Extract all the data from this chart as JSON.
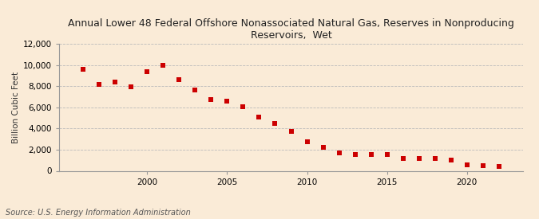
{
  "title": "Annual Lower 48 Federal Offshore Nonassociated Natural Gas, Reserves in Nonproducing\nReservoirs,  Wet",
  "ylabel": "Billion Cubic Feet",
  "source": "Source: U.S. Energy Information Administration",
  "background_color": "#faebd7",
  "plot_bg_color": "#faebd7",
  "marker_color": "#cc0000",
  "years": [
    1996,
    1997,
    1998,
    1999,
    2000,
    2001,
    2002,
    2003,
    2004,
    2005,
    2006,
    2007,
    2008,
    2009,
    2010,
    2011,
    2012,
    2013,
    2014,
    2015,
    2016,
    2017,
    2018,
    2019,
    2020,
    2021,
    2022
  ],
  "values": [
    9600,
    8200,
    8400,
    7950,
    9400,
    9950,
    8650,
    7600,
    6700,
    6550,
    6050,
    5050,
    4500,
    3750,
    2750,
    2250,
    1700,
    1550,
    1550,
    1550,
    1200,
    1200,
    1200,
    1000,
    600,
    500,
    450
  ],
  "ylim": [
    0,
    12000
  ],
  "yticks": [
    0,
    2000,
    4000,
    6000,
    8000,
    10000,
    12000
  ],
  "xticks": [
    2000,
    2005,
    2010,
    2015,
    2020
  ],
  "xlim": [
    1994.5,
    2023.5
  ],
  "title_fontsize": 9,
  "ylabel_fontsize": 7.5,
  "tick_fontsize": 7.5,
  "source_fontsize": 7,
  "grid_color": "#bbbbbb",
  "spine_color": "#999999"
}
